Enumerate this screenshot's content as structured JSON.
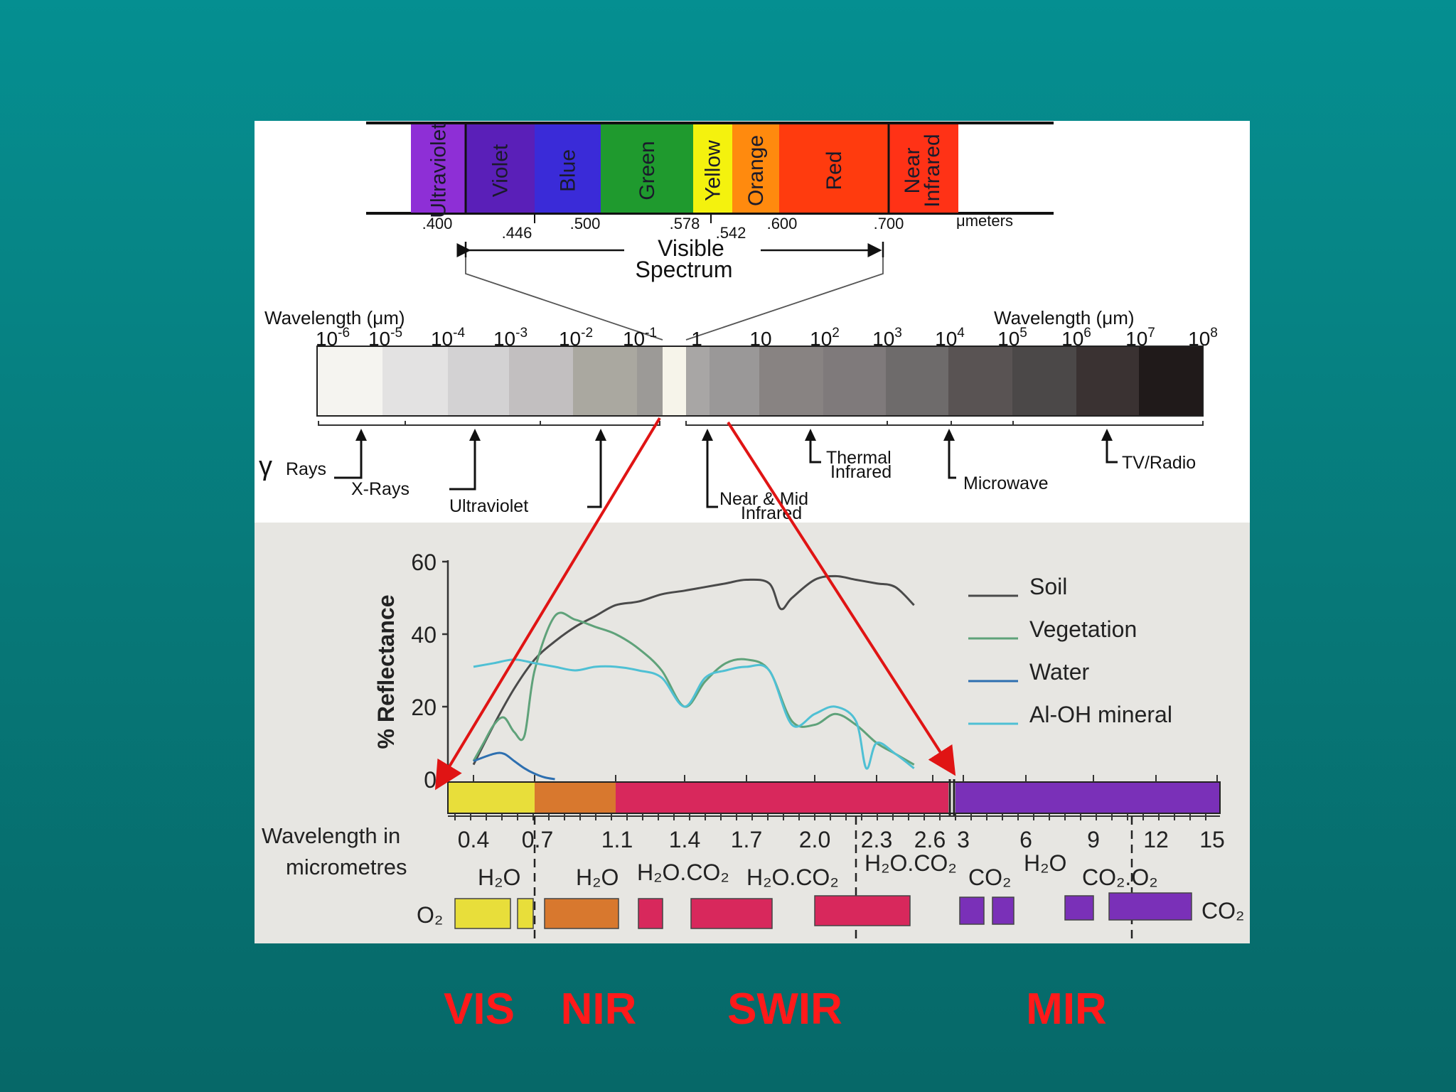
{
  "visible_spectrum": {
    "bands": [
      {
        "label": "Ultraviolet",
        "color": "#8e2fd6"
      },
      {
        "label": "Violet",
        "color": "#5a1fb8"
      },
      {
        "label": "Blue",
        "color": "#3a2bd8"
      },
      {
        "label": "Green",
        "color": "#1f9a2e"
      },
      {
        "label": "Yellow",
        "color": "#f4f20e"
      },
      {
        "label": "Orange",
        "color": "#ff8a0e"
      },
      {
        "label": "Red",
        "color": "#ff3b0e"
      },
      {
        "label": "Near Infrared",
        "color": "#ff3216"
      }
    ],
    "ticks": [
      ".400",
      ".446",
      ".500",
      ".578",
      ".542",
      ".600",
      ".700"
    ],
    "unit": "μmeters",
    "title_line1": "Visible",
    "title_line2": "Spectrum"
  },
  "em_spectrum": {
    "left_label": "Wavelength (μm)",
    "right_label": "Wavelength (μm)",
    "exponent_labels": [
      "-6",
      "-5",
      "-4",
      "-3",
      "-2",
      "-1",
      "",
      "",
      "2",
      "3",
      "4",
      "5",
      "6",
      "7",
      "8"
    ],
    "plain_labels": {
      "one": "1",
      "ten": "10",
      "base": "10"
    },
    "gray_blocks": [
      "#f5f4f0",
      "#e3e2e2",
      "#d3d2d3",
      "#c2bfc0",
      "#aaa8a0",
      "#9c9a97",
      "#f6f4ea",
      "#a8a6a5",
      "#9a9898",
      "#888382",
      "#7f7a7b",
      "#6e6b6b",
      "#595353",
      "#4b4848",
      "#3a3232",
      "#201a1a"
    ],
    "regions": {
      "gamma_symbol": "γ",
      "gamma": "Rays",
      "xrays": "X-Rays",
      "uv": "Ultraviolet",
      "nir_line1": "Near & Mid",
      "nir_line2": "Infrared",
      "thermal_line1": "Thermal",
      "thermal_line2": "Infrared",
      "microwave": "Microwave",
      "tv": "TV/Radio"
    }
  },
  "reflectance_chart": {
    "ylabel": "% Reflectance",
    "yticks": [
      "0",
      "20",
      "40",
      "60"
    ],
    "xlabel_line1": "Wavelength in",
    "xlabel_line2": "micrometres",
    "xticks": [
      "0.4",
      "0.7",
      "1.1",
      "1.4",
      "1.7",
      "2.0",
      "2.3",
      "2.6",
      "3",
      "6",
      "9",
      "12",
      "15"
    ],
    "absorber_labels": [
      "H₂O",
      "H₂O",
      "H₂O.CO₂",
      "H₂O.CO₂",
      "H₂O.CO₂",
      "CO₂",
      "H₂O",
      "CO₂.O₂"
    ],
    "o2": "O₂",
    "co2": "CO₂",
    "colors": {
      "soil": "#4a4a4a",
      "vegetation": "#5fa27a",
      "water": "#2d6fb0",
      "mineral": "#4fc0d4",
      "vis": "#e8de3a",
      "nir": "#d8782e",
      "swir": "#d8285c",
      "mir": "#7a30b8"
    },
    "legend": [
      "Soil",
      "Vegetation",
      "Water",
      "Al-OH mineral"
    ]
  },
  "chart_data": {
    "type": "line",
    "xlabel": "Wavelength in micrometres",
    "ylabel": "% Reflectance",
    "ylim": [
      0,
      60
    ],
    "series": [
      {
        "name": "Soil",
        "x": [
          0.4,
          0.5,
          0.6,
          0.7,
          0.8,
          0.9,
          1.0,
          1.1,
          1.2,
          1.3,
          1.4,
          1.5,
          1.6,
          1.7,
          1.8,
          1.85,
          1.9,
          2.0,
          2.1,
          2.2,
          2.3,
          2.4,
          2.5
        ],
        "y": [
          4,
          15,
          25,
          33,
          38,
          42,
          45,
          48,
          49,
          51,
          52,
          53,
          54,
          55,
          54,
          47,
          50,
          55,
          56,
          55,
          54,
          53,
          48
        ]
      },
      {
        "name": "Vegetation",
        "x": [
          0.4,
          0.45,
          0.5,
          0.55,
          0.6,
          0.65,
          0.7,
          0.8,
          0.9,
          1.0,
          1.1,
          1.2,
          1.3,
          1.4,
          1.5,
          1.6,
          1.7,
          1.8,
          1.9,
          2.0,
          2.1,
          2.2,
          2.3,
          2.4,
          2.5
        ],
        "y": [
          5,
          10,
          15,
          17,
          13,
          12,
          30,
          45,
          44,
          42,
          40,
          36,
          30,
          20,
          27,
          32,
          33,
          30,
          16,
          15,
          18,
          15,
          10,
          7,
          4
        ]
      },
      {
        "name": "Water",
        "x": [
          0.4,
          0.5,
          0.55,
          0.6,
          0.65,
          0.7,
          0.75,
          0.8
        ],
        "y": [
          5,
          7,
          7,
          5,
          3,
          1.5,
          0.5,
          0
        ]
      },
      {
        "name": "Al-OH mineral",
        "x": [
          0.4,
          0.5,
          0.6,
          0.7,
          0.8,
          0.9,
          1.0,
          1.1,
          1.2,
          1.3,
          1.4,
          1.5,
          1.6,
          1.7,
          1.8,
          1.9,
          2.0,
          2.1,
          2.2,
          2.25,
          2.3,
          2.4,
          2.5
        ],
        "y": [
          31,
          32,
          33,
          32,
          31,
          30,
          31,
          31,
          30,
          28,
          20,
          28,
          30,
          31,
          30,
          15,
          18,
          20,
          16,
          3,
          10,
          7,
          3
        ]
      }
    ]
  },
  "bottom_labels": [
    "VIS",
    "NIR",
    "SWIR",
    "MIR"
  ]
}
